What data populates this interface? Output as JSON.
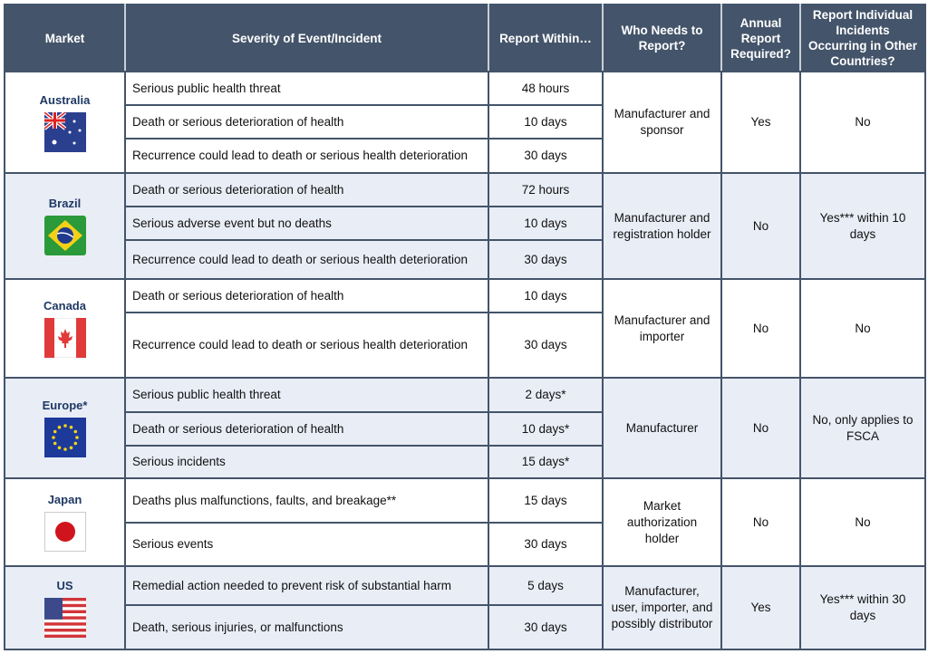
{
  "header": {
    "market": "Market",
    "severity": "Severity of Event/Incident",
    "report_within": "Report Within…",
    "who": "Who Needs to Report?",
    "annual": "Annual Report Required?",
    "other_countries": "Report Individual Incidents Occurring in Other Countries?"
  },
  "colors": {
    "header_bg": "#44546a",
    "alt_row_bg": "#e9edf6",
    "market_text": "#1f3864"
  },
  "markets": [
    {
      "name": "Australia",
      "flag_icon": "australia-flag-icon",
      "who": "Manufacturer and sponsor",
      "annual": "Yes",
      "other": "No",
      "events": [
        {
          "severity": "Serious public health threat",
          "within": "48 hours"
        },
        {
          "severity": "Death or serious deterioration of health",
          "within": "10 days"
        },
        {
          "severity": "Recurrence could lead to death or serious health deterioration",
          "within": "30 days"
        }
      ]
    },
    {
      "name": "Brazil",
      "flag_icon": "brazil-flag-icon",
      "who": "Manufacturer and registration holder",
      "annual": "No",
      "other": "Yes*** within 10 days",
      "events": [
        {
          "severity": "Death or serious deterioration of health",
          "within": "72 hours"
        },
        {
          "severity": "Serious adverse event but no deaths",
          "within": "10 days"
        },
        {
          "severity": "Recurrence could lead to death or serious health deterioration",
          "within": "30 days"
        }
      ]
    },
    {
      "name": "Canada",
      "flag_icon": "canada-flag-icon",
      "who": "Manufacturer and importer",
      "annual": "No",
      "other": "No",
      "events": [
        {
          "severity": "Death or serious deterioration of health",
          "within": "10 days"
        },
        {
          "severity": "Recurrence could lead to death or serious health deterioration",
          "within": "30 days"
        }
      ]
    },
    {
      "name": "Europe*",
      "flag_icon": "eu-flag-icon",
      "who": "Manufacturer",
      "annual": "No",
      "other": "No, only applies to FSCA",
      "events": [
        {
          "severity": "Serious public health threat",
          "within": "2 days*"
        },
        {
          "severity": "Death or serious deterioration of health",
          "within": "10 days*"
        },
        {
          "severity": "Serious incidents",
          "within": "15 days*"
        }
      ]
    },
    {
      "name": "Japan",
      "flag_icon": "japan-flag-icon",
      "who": "Market authorization holder",
      "annual": "No",
      "other": "No",
      "events": [
        {
          "severity": "Deaths plus malfunctions, faults, and breakage**",
          "within": "15 days"
        },
        {
          "severity": "Serious events",
          "within": "30 days"
        }
      ]
    },
    {
      "name": "US",
      "flag_icon": "us-flag-icon",
      "who": "Manufacturer, user, importer, and possibly distributor",
      "annual": "Yes",
      "other": "Yes*** within 30 days",
      "events": [
        {
          "severity": "Remedial action needed to prevent risk of substantial harm",
          "within": "5 days"
        },
        {
          "severity": "Death, serious injuries, or malfunctions",
          "within": "30 days"
        }
      ]
    }
  ]
}
